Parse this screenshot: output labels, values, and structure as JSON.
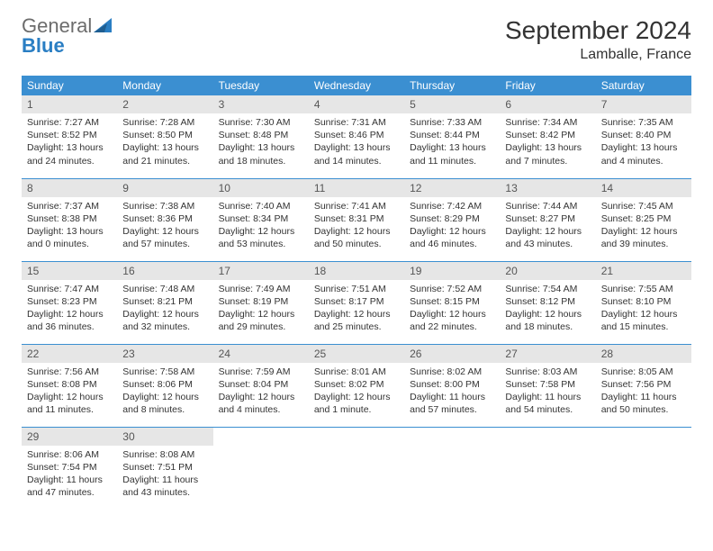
{
  "brand": {
    "part1": "General",
    "part2": "Blue"
  },
  "title": "September 2024",
  "location": "Lamballe, France",
  "colors": {
    "header_bg": "#3b8fd1",
    "header_text": "#ffffff",
    "daynum_bg": "#e6e6e6",
    "border": "#3b8fd1",
    "brand_gray": "#6c6c6c",
    "brand_blue": "#2a7ec3",
    "page_bg": "#ffffff",
    "body_text": "#333333"
  },
  "weekdays": [
    "Sunday",
    "Monday",
    "Tuesday",
    "Wednesday",
    "Thursday",
    "Friday",
    "Saturday"
  ],
  "weeks": [
    [
      {
        "n": "1",
        "sr": "Sunrise: 7:27 AM",
        "ss": "Sunset: 8:52 PM",
        "d1": "Daylight: 13 hours",
        "d2": "and 24 minutes."
      },
      {
        "n": "2",
        "sr": "Sunrise: 7:28 AM",
        "ss": "Sunset: 8:50 PM",
        "d1": "Daylight: 13 hours",
        "d2": "and 21 minutes."
      },
      {
        "n": "3",
        "sr": "Sunrise: 7:30 AM",
        "ss": "Sunset: 8:48 PM",
        "d1": "Daylight: 13 hours",
        "d2": "and 18 minutes."
      },
      {
        "n": "4",
        "sr": "Sunrise: 7:31 AM",
        "ss": "Sunset: 8:46 PM",
        "d1": "Daylight: 13 hours",
        "d2": "and 14 minutes."
      },
      {
        "n": "5",
        "sr": "Sunrise: 7:33 AM",
        "ss": "Sunset: 8:44 PM",
        "d1": "Daylight: 13 hours",
        "d2": "and 11 minutes."
      },
      {
        "n": "6",
        "sr": "Sunrise: 7:34 AM",
        "ss": "Sunset: 8:42 PM",
        "d1": "Daylight: 13 hours",
        "d2": "and 7 minutes."
      },
      {
        "n": "7",
        "sr": "Sunrise: 7:35 AM",
        "ss": "Sunset: 8:40 PM",
        "d1": "Daylight: 13 hours",
        "d2": "and 4 minutes."
      }
    ],
    [
      {
        "n": "8",
        "sr": "Sunrise: 7:37 AM",
        "ss": "Sunset: 8:38 PM",
        "d1": "Daylight: 13 hours",
        "d2": "and 0 minutes."
      },
      {
        "n": "9",
        "sr": "Sunrise: 7:38 AM",
        "ss": "Sunset: 8:36 PM",
        "d1": "Daylight: 12 hours",
        "d2": "and 57 minutes."
      },
      {
        "n": "10",
        "sr": "Sunrise: 7:40 AM",
        "ss": "Sunset: 8:34 PM",
        "d1": "Daylight: 12 hours",
        "d2": "and 53 minutes."
      },
      {
        "n": "11",
        "sr": "Sunrise: 7:41 AM",
        "ss": "Sunset: 8:31 PM",
        "d1": "Daylight: 12 hours",
        "d2": "and 50 minutes."
      },
      {
        "n": "12",
        "sr": "Sunrise: 7:42 AM",
        "ss": "Sunset: 8:29 PM",
        "d1": "Daylight: 12 hours",
        "d2": "and 46 minutes."
      },
      {
        "n": "13",
        "sr": "Sunrise: 7:44 AM",
        "ss": "Sunset: 8:27 PM",
        "d1": "Daylight: 12 hours",
        "d2": "and 43 minutes."
      },
      {
        "n": "14",
        "sr": "Sunrise: 7:45 AM",
        "ss": "Sunset: 8:25 PM",
        "d1": "Daylight: 12 hours",
        "d2": "and 39 minutes."
      }
    ],
    [
      {
        "n": "15",
        "sr": "Sunrise: 7:47 AM",
        "ss": "Sunset: 8:23 PM",
        "d1": "Daylight: 12 hours",
        "d2": "and 36 minutes."
      },
      {
        "n": "16",
        "sr": "Sunrise: 7:48 AM",
        "ss": "Sunset: 8:21 PM",
        "d1": "Daylight: 12 hours",
        "d2": "and 32 minutes."
      },
      {
        "n": "17",
        "sr": "Sunrise: 7:49 AM",
        "ss": "Sunset: 8:19 PM",
        "d1": "Daylight: 12 hours",
        "d2": "and 29 minutes."
      },
      {
        "n": "18",
        "sr": "Sunrise: 7:51 AM",
        "ss": "Sunset: 8:17 PM",
        "d1": "Daylight: 12 hours",
        "d2": "and 25 minutes."
      },
      {
        "n": "19",
        "sr": "Sunrise: 7:52 AM",
        "ss": "Sunset: 8:15 PM",
        "d1": "Daylight: 12 hours",
        "d2": "and 22 minutes."
      },
      {
        "n": "20",
        "sr": "Sunrise: 7:54 AM",
        "ss": "Sunset: 8:12 PM",
        "d1": "Daylight: 12 hours",
        "d2": "and 18 minutes."
      },
      {
        "n": "21",
        "sr": "Sunrise: 7:55 AM",
        "ss": "Sunset: 8:10 PM",
        "d1": "Daylight: 12 hours",
        "d2": "and 15 minutes."
      }
    ],
    [
      {
        "n": "22",
        "sr": "Sunrise: 7:56 AM",
        "ss": "Sunset: 8:08 PM",
        "d1": "Daylight: 12 hours",
        "d2": "and 11 minutes."
      },
      {
        "n": "23",
        "sr": "Sunrise: 7:58 AM",
        "ss": "Sunset: 8:06 PM",
        "d1": "Daylight: 12 hours",
        "d2": "and 8 minutes."
      },
      {
        "n": "24",
        "sr": "Sunrise: 7:59 AM",
        "ss": "Sunset: 8:04 PM",
        "d1": "Daylight: 12 hours",
        "d2": "and 4 minutes."
      },
      {
        "n": "25",
        "sr": "Sunrise: 8:01 AM",
        "ss": "Sunset: 8:02 PM",
        "d1": "Daylight: 12 hours",
        "d2": "and 1 minute."
      },
      {
        "n": "26",
        "sr": "Sunrise: 8:02 AM",
        "ss": "Sunset: 8:00 PM",
        "d1": "Daylight: 11 hours",
        "d2": "and 57 minutes."
      },
      {
        "n": "27",
        "sr": "Sunrise: 8:03 AM",
        "ss": "Sunset: 7:58 PM",
        "d1": "Daylight: 11 hours",
        "d2": "and 54 minutes."
      },
      {
        "n": "28",
        "sr": "Sunrise: 8:05 AM",
        "ss": "Sunset: 7:56 PM",
        "d1": "Daylight: 11 hours",
        "d2": "and 50 minutes."
      }
    ],
    [
      {
        "n": "29",
        "sr": "Sunrise: 8:06 AM",
        "ss": "Sunset: 7:54 PM",
        "d1": "Daylight: 11 hours",
        "d2": "and 47 minutes."
      },
      {
        "n": "30",
        "sr": "Sunrise: 8:08 AM",
        "ss": "Sunset: 7:51 PM",
        "d1": "Daylight: 11 hours",
        "d2": "and 43 minutes."
      },
      {
        "empty": true
      },
      {
        "empty": true
      },
      {
        "empty": true
      },
      {
        "empty": true
      },
      {
        "empty": true
      }
    ]
  ]
}
